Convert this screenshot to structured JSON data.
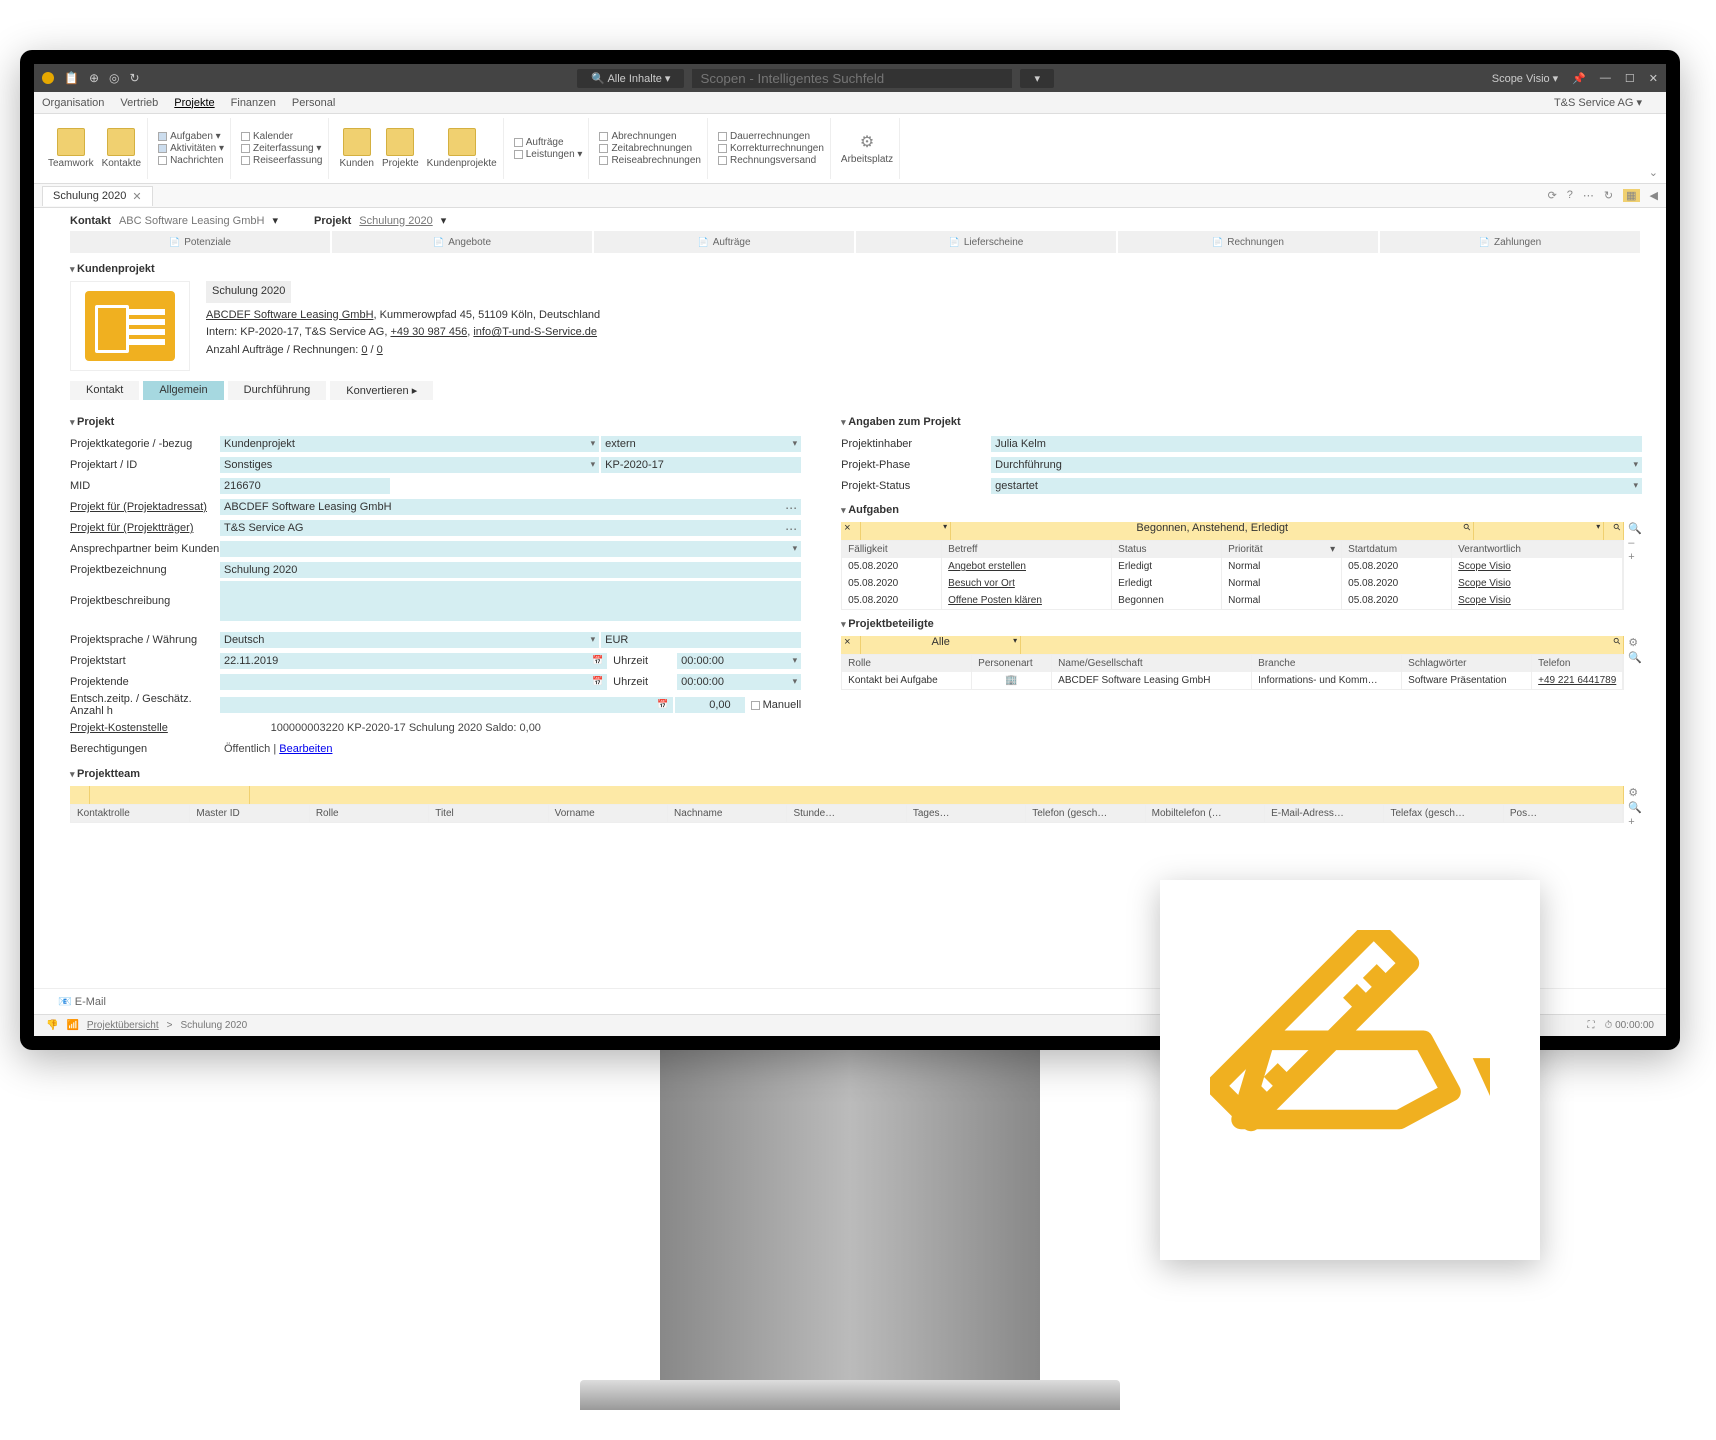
{
  "colors": {
    "accent": "#a6d8e0",
    "field": "#d5eef2",
    "filter": "#fde9a6",
    "brand": "#f0b020"
  },
  "titlebar": {
    "search_btn": "🔍 Alle Inhalte ▾",
    "search_placeholder": "Scopen - Intelligentes Suchfeld",
    "app": "Scope Visio ▾",
    "min": "—",
    "max": "☐",
    "close": "✕"
  },
  "menubar": {
    "items": [
      "Organisation",
      "Vertrieb",
      "Projekte",
      "Finanzen",
      "Personal"
    ],
    "active": "Projekte",
    "company": "T&S Service AG ▾"
  },
  "ribbon": {
    "g1": {
      "big1": "Teamwork",
      "big2": "Kontakte"
    },
    "g2": {
      "items": [
        "Aufgaben ▾",
        "Aktivitäten ▾",
        "Nachrichten"
      ],
      "checks": [
        true,
        true,
        false
      ]
    },
    "g3": {
      "items": [
        "Kalender",
        "Zeiterfassung ▾",
        "Reiseerfassung"
      ],
      "checks": [
        false,
        false,
        false
      ]
    },
    "g4": {
      "big": [
        "Kunden",
        "Projekte",
        "Kundenprojekte"
      ]
    },
    "g5": {
      "items": [
        "Aufträge",
        "Leistungen ▾"
      ],
      "checks": [
        false,
        false
      ]
    },
    "g6": {
      "items": [
        "Abrechnungen",
        "Zeitabrechnungen",
        "Reiseabrechnungen"
      ],
      "checks": [
        false,
        false,
        false
      ]
    },
    "g7": {
      "items": [
        "Dauerrechnungen",
        "Korrekturrechnungen",
        "Rechnungsversand"
      ],
      "checks": [
        false,
        false,
        false
      ]
    },
    "g8": {
      "big": "Arbeitsplatz"
    }
  },
  "tabstrip": {
    "tab": "Schulung 2020",
    "tools": [
      "⟳",
      "?",
      "⋯",
      "↻",
      "▦",
      "◀"
    ]
  },
  "context": {
    "kontakt_lab": "Kontakt",
    "kontakt_val": "ABC Software Leasing GmbH",
    "projekt_lab": "Projekt",
    "projekt_val": "Schulung 2020"
  },
  "process": [
    "Potenziale",
    "Angebote",
    "Aufträge",
    "Lieferscheine",
    "Rechnungen",
    "Zahlungen"
  ],
  "header": {
    "section": "Kundenprojekt",
    "name": "Schulung 2020",
    "company": "ABCDEF Software Leasing GmbH",
    "addr": ", Kummerowpfad 45, 51109 Köln, Deutschland",
    "intern_pre": "Intern: KP-2020-17, T&S Service AG, ",
    "phone": "+49 30 987 456",
    "sep": ", ",
    "email": "info@T-und-S-Service.de",
    "counts_pre": "Anzahl Aufträge / Rechnungen: ",
    "c1": "0",
    "csep": " / ",
    "c2": "0"
  },
  "subtabs": [
    "Kontakt",
    "Allgemein",
    "Durchführung",
    "Konvertieren ▸"
  ],
  "subtab_active": "Allgemein",
  "projekt": {
    "title": "Projekt",
    "kategorie_lab": "Projektkategorie / -bezug",
    "kategorie": "Kundenprojekt",
    "kategorie2": "extern",
    "art_lab": "Projektart / ID",
    "art": "Sonstiges",
    "id": "KP-2020-17",
    "mid_lab": "MID",
    "mid": "216670",
    "adr_lab": "Projekt für (Projektadressat)",
    "adr": "ABCDEF Software Leasing GmbH",
    "traeger_lab": "Projekt für (Projektträger)",
    "traeger": "T&S Service AG",
    "ansp_lab": "Ansprechpartner beim Kunden",
    "ansp": "",
    "bez_lab": "Projektbezeichnung",
    "bez": "Schulung 2020",
    "beschr_lab": "Projektbeschreibung",
    "beschr": "",
    "sprache_lab": "Projektsprache / Währung",
    "sprache": "Deutsch",
    "waehrung": "EUR",
    "start_lab": "Projektstart",
    "start": "22.11.2019",
    "uhr_lab": "Uhrzeit",
    "start_t": "00:00:00",
    "ende_lab": "Projektende",
    "ende": "",
    "ende_t": "00:00:00",
    "anzahl_lab": "Entsch.zeitp. / Geschätz. Anzahl h",
    "anzahl": "",
    "anzahl_val": "0,00",
    "manuell": "Manuell",
    "kst_lab": "Projekt-Kostenstelle",
    "kst_id": "100000003220",
    "kst_txt": " KP-2020-17 Schulung 2020 Saldo: 0,00",
    "ber_lab": "Berechtigungen",
    "ber": "Öffentlich | ",
    "ber_edit": "Bearbeiten"
  },
  "angaben": {
    "title": "Angaben zum Projekt",
    "inh_lab": "Projektinhaber",
    "inh": "Julia Kelm",
    "phase_lab": "Projekt-Phase",
    "phase": "Durchführung",
    "status_lab": "Projekt-Status",
    "status": "gestartet"
  },
  "aufgaben": {
    "title": "Aufgaben",
    "filter_status": "Begonnen, Anstehend, Erledigt",
    "cols": [
      "Fälligkeit",
      "Betreff",
      "Status",
      "Priorität",
      "Startdatum",
      "Verantwortlich"
    ],
    "rows": [
      {
        "due": "05.08.2020",
        "sub": "Angebot erstellen",
        "st": "Erledigt",
        "pr": "Normal",
        "sd": "05.08.2020",
        "resp": "Scope Visio"
      },
      {
        "due": "05.08.2020",
        "sub": "Besuch vor Ort",
        "st": "Erledigt",
        "pr": "Normal",
        "sd": "05.08.2020",
        "resp": "Scope Visio"
      },
      {
        "due": "05.08.2020",
        "sub": "Offene Posten klären",
        "st": "Begonnen",
        "pr": "Normal",
        "sd": "05.08.2020",
        "resp": "Scope Visio"
      }
    ]
  },
  "beteiligte": {
    "title": "Projektbeteiligte",
    "filter": "Alle",
    "cols": [
      "Rolle",
      "Personenart",
      "Name/Gesellschaft",
      "Branche",
      "Schlagwörter",
      "Telefon"
    ],
    "row": {
      "rolle": "Kontakt bei Aufgabe",
      "art": "🏢",
      "name": "ABCDEF Software Leasing GmbH",
      "br": "Informations- und Komm…",
      "sw": "Software Präsentation",
      "tel": "+49 221 6441789"
    }
  },
  "team": {
    "title": "Projektteam",
    "cols": [
      "Kontaktrolle",
      "Master ID",
      "Rolle",
      "Titel",
      "Vorname",
      "Nachname",
      "Stunde…",
      "Tages…",
      "Telefon (gesch…",
      "Mobiltelefon (…",
      "E-Mail-Adress…",
      "Telefax (gesch…",
      "Pos…"
    ]
  },
  "email": "📧 E-Mail",
  "statusbar": {
    "sig": "📶",
    "root": "Projektübersicht",
    "sep": " > ",
    "cur": "Schulung 2020",
    "clock": "⏱ 00:00:00"
  }
}
